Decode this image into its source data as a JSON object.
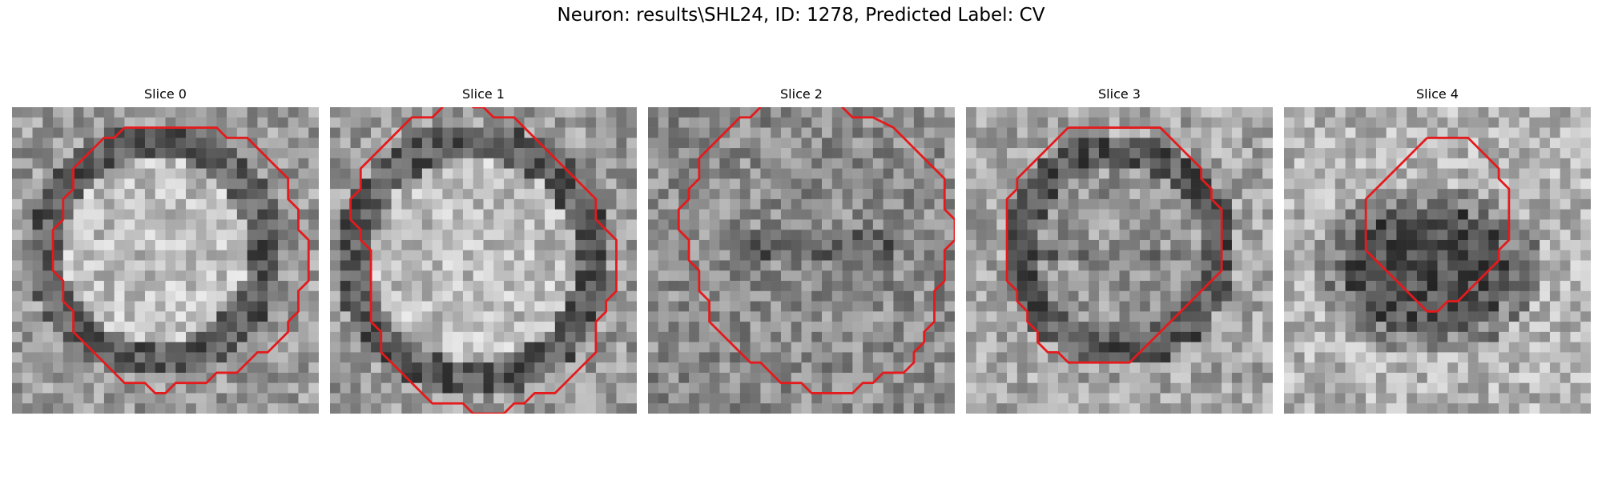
{
  "figure": {
    "title": "Neuron: results\\SHL24, ID: 1278, Predicted Label: CV"
  },
  "slices": [
    {
      "title": "Slice 0",
      "seed": 11,
      "structure": {
        "type": "bright-disk",
        "cx": 14,
        "cy": 14,
        "r": 9,
        "ring": 11.5
      },
      "contour": [
        [
          11,
          2
        ],
        [
          20,
          2
        ],
        [
          21,
          3
        ],
        [
          23,
          3
        ],
        [
          25,
          5
        ],
        [
          27,
          7
        ],
        [
          27,
          9
        ],
        [
          28,
          10
        ],
        [
          28,
          12
        ],
        [
          29,
          13
        ],
        [
          29,
          17
        ],
        [
          28,
          18
        ],
        [
          28,
          20
        ],
        [
          27,
          21
        ],
        [
          27,
          22
        ],
        [
          25,
          24
        ],
        [
          24,
          24
        ],
        [
          22,
          26
        ],
        [
          20,
          26
        ],
        [
          19,
          27
        ],
        [
          17,
          27
        ],
        [
          16,
          27
        ],
        [
          15,
          28
        ],
        [
          14,
          28
        ],
        [
          13,
          27
        ],
        [
          11,
          27
        ],
        [
          10,
          26
        ],
        [
          8,
          24
        ],
        [
          6,
          22
        ],
        [
          6,
          20
        ],
        [
          5,
          19
        ],
        [
          5,
          17
        ],
        [
          4,
          16
        ],
        [
          4,
          12
        ],
        [
          5,
          11
        ],
        [
          5,
          9
        ],
        [
          6,
          8
        ],
        [
          6,
          6
        ],
        [
          7,
          5
        ],
        [
          8,
          4
        ],
        [
          9,
          3
        ],
        [
          10,
          3
        ]
      ]
    },
    {
      "title": "Slice 1",
      "seed": 23,
      "structure": {
        "type": "bright-disk",
        "cx": 14,
        "cy": 15,
        "r": 10,
        "ring": 12.5
      },
      "contour": [
        [
          10,
          -2
        ],
        [
          11,
          -1
        ],
        [
          11,
          0
        ],
        [
          10,
          1
        ],
        [
          8,
          1
        ],
        [
          6,
          3
        ],
        [
          4,
          5
        ],
        [
          3,
          6
        ],
        [
          3,
          8
        ],
        [
          2,
          9
        ],
        [
          2,
          11
        ],
        [
          3,
          12
        ],
        [
          3,
          13
        ],
        [
          4,
          14
        ],
        [
          4,
          21
        ],
        [
          5,
          22
        ],
        [
          5,
          24
        ],
        [
          6,
          25
        ],
        [
          7,
          26
        ],
        [
          8,
          27
        ],
        [
          9,
          28
        ],
        [
          10,
          29
        ],
        [
          13,
          29
        ],
        [
          14,
          30
        ],
        [
          17,
          30
        ],
        [
          18,
          29
        ],
        [
          19,
          29
        ],
        [
          20,
          28
        ],
        [
          22,
          28
        ],
        [
          23,
          27
        ],
        [
          24,
          26
        ],
        [
          25,
          25
        ],
        [
          26,
          24
        ],
        [
          26,
          21
        ],
        [
          27,
          20
        ],
        [
          27,
          19
        ],
        [
          28,
          18
        ],
        [
          28,
          13
        ],
        [
          27,
          12
        ],
        [
          26,
          11
        ],
        [
          26,
          9
        ],
        [
          25,
          8
        ],
        [
          24,
          7
        ],
        [
          23,
          6
        ],
        [
          22,
          5
        ],
        [
          21,
          4
        ],
        [
          20,
          3
        ],
        [
          19,
          2
        ],
        [
          18,
          1
        ],
        [
          16,
          1
        ],
        [
          15,
          0
        ],
        [
          14,
          0
        ],
        [
          13,
          -1
        ],
        [
          13,
          -2
        ]
      ]
    },
    {
      "title": "Slice 2",
      "seed": 37,
      "structure": {
        "type": "mottled",
        "cx": 15,
        "cy": 14,
        "r": 11,
        "ring": 13
      },
      "contour": [
        [
          11,
          0
        ],
        [
          10,
          1
        ],
        [
          9,
          1
        ],
        [
          8,
          2
        ],
        [
          6,
          4
        ],
        [
          5,
          5
        ],
        [
          5,
          7
        ],
        [
          4,
          8
        ],
        [
          4,
          9
        ],
        [
          3,
          10
        ],
        [
          3,
          12
        ],
        [
          4,
          13
        ],
        [
          4,
          15
        ],
        [
          5,
          16
        ],
        [
          5,
          18
        ],
        [
          6,
          19
        ],
        [
          6,
          21
        ],
        [
          7,
          22
        ],
        [
          8,
          23
        ],
        [
          9,
          24
        ],
        [
          10,
          25
        ],
        [
          11,
          25
        ],
        [
          12,
          26
        ],
        [
          13,
          27
        ],
        [
          15,
          27
        ],
        [
          16,
          28
        ],
        [
          20,
          28
        ],
        [
          21,
          27
        ],
        [
          22,
          27
        ],
        [
          23,
          26
        ],
        [
          25,
          26
        ],
        [
          26,
          25
        ],
        [
          26,
          24
        ],
        [
          27,
          23
        ],
        [
          27,
          22
        ],
        [
          28,
          21
        ],
        [
          28,
          18
        ],
        [
          29,
          17
        ],
        [
          29,
          14
        ],
        [
          30,
          13
        ],
        [
          30,
          11
        ],
        [
          29,
          10
        ],
        [
          29,
          7
        ],
        [
          28,
          6
        ],
        [
          27,
          5
        ],
        [
          26,
          4
        ],
        [
          25,
          3
        ],
        [
          24,
          2
        ],
        [
          22,
          1
        ],
        [
          20,
          1
        ],
        [
          19,
          0
        ],
        [
          18,
          -1
        ]
      ]
    },
    {
      "title": "Slice 3",
      "seed": 51,
      "structure": {
        "type": "dark-ring",
        "cx": 15,
        "cy": 14,
        "r": 9,
        "ring": 10.5
      },
      "contour": [
        [
          10,
          2
        ],
        [
          19,
          2
        ],
        [
          20,
          3
        ],
        [
          21,
          4
        ],
        [
          22,
          5
        ],
        [
          23,
          6
        ],
        [
          23,
          7
        ],
        [
          24,
          8
        ],
        [
          24,
          9
        ],
        [
          25,
          10
        ],
        [
          25,
          13
        ],
        [
          25,
          16
        ],
        [
          24,
          17
        ],
        [
          23,
          18
        ],
        [
          22,
          19
        ],
        [
          21,
          20
        ],
        [
          20,
          21
        ],
        [
          19,
          22
        ],
        [
          18,
          23
        ],
        [
          17,
          24
        ],
        [
          16,
          25
        ],
        [
          13,
          25
        ],
        [
          10,
          25
        ],
        [
          9,
          24
        ],
        [
          8,
          24
        ],
        [
          7,
          23
        ],
        [
          7,
          22
        ],
        [
          6,
          21
        ],
        [
          6,
          20
        ],
        [
          5,
          19
        ],
        [
          5,
          18
        ],
        [
          4,
          17
        ],
        [
          4,
          14
        ],
        [
          4,
          11
        ],
        [
          4,
          9
        ],
        [
          5,
          8
        ],
        [
          5,
          7
        ],
        [
          6,
          6
        ],
        [
          7,
          5
        ],
        [
          8,
          4
        ],
        [
          9,
          3
        ]
      ]
    },
    {
      "title": "Slice 4",
      "seed": 67,
      "structure": {
        "type": "dark-blob",
        "cx": 14,
        "cy": 16,
        "r": 8,
        "ring": 9
      },
      "contour": [
        [
          14,
          3
        ],
        [
          18,
          3
        ],
        [
          19,
          4
        ],
        [
          20,
          5
        ],
        [
          21,
          6
        ],
        [
          21,
          7
        ],
        [
          22,
          8
        ],
        [
          22,
          9
        ],
        [
          22,
          11
        ],
        [
          22,
          13
        ],
        [
          21,
          14
        ],
        [
          21,
          15
        ],
        [
          20,
          16
        ],
        [
          19,
          17
        ],
        [
          18,
          18
        ],
        [
          17,
          19
        ],
        [
          16,
          19
        ],
        [
          15,
          20
        ],
        [
          14,
          20
        ],
        [
          13,
          19
        ],
        [
          12,
          18
        ],
        [
          11,
          17
        ],
        [
          10,
          16
        ],
        [
          9,
          15
        ],
        [
          8,
          14
        ],
        [
          8,
          13
        ],
        [
          8,
          9
        ],
        [
          9,
          8
        ],
        [
          10,
          7
        ],
        [
          11,
          6
        ],
        [
          12,
          5
        ],
        [
          13,
          4
        ]
      ]
    }
  ]
}
